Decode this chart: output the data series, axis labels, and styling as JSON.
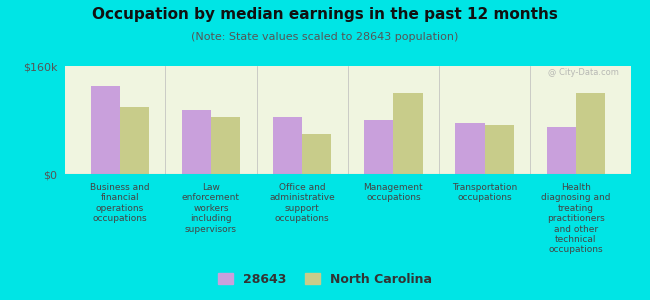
{
  "title": "Occupation by median earnings in the past 12 months",
  "subtitle": "(Note: State values scaled to 28643 population)",
  "categories": [
    "Business and\nfinancial\noperations\noccupations",
    "Law\nenforcement\nworkers\nincluding\nsupervisors",
    "Office and\nadministrative\nsupport\noccupations",
    "Management\noccupations",
    "Transportation\noccupations",
    "Health\ndiagnosing and\ntreating\npractitioners\nand other\ntechnical\noccupations"
  ],
  "values_28643": [
    130000,
    95000,
    85000,
    80000,
    75000,
    70000
  ],
  "values_nc": [
    100000,
    85000,
    60000,
    120000,
    72000,
    120000
  ],
  "color_28643": "#c9a0dc",
  "color_nc": "#c8cc8a",
  "ylim": [
    0,
    160000
  ],
  "ytick_labels": [
    "$0",
    "$160k"
  ],
  "legend_28643": "28643",
  "legend_nc": "North Carolina",
  "background_outer": "#00e5e5",
  "background_inner": "#f0f5e0",
  "title_fontsize": 11,
  "subtitle_fontsize": 8,
  "label_fontsize": 6.5,
  "watermark": "@ City-Data.com"
}
